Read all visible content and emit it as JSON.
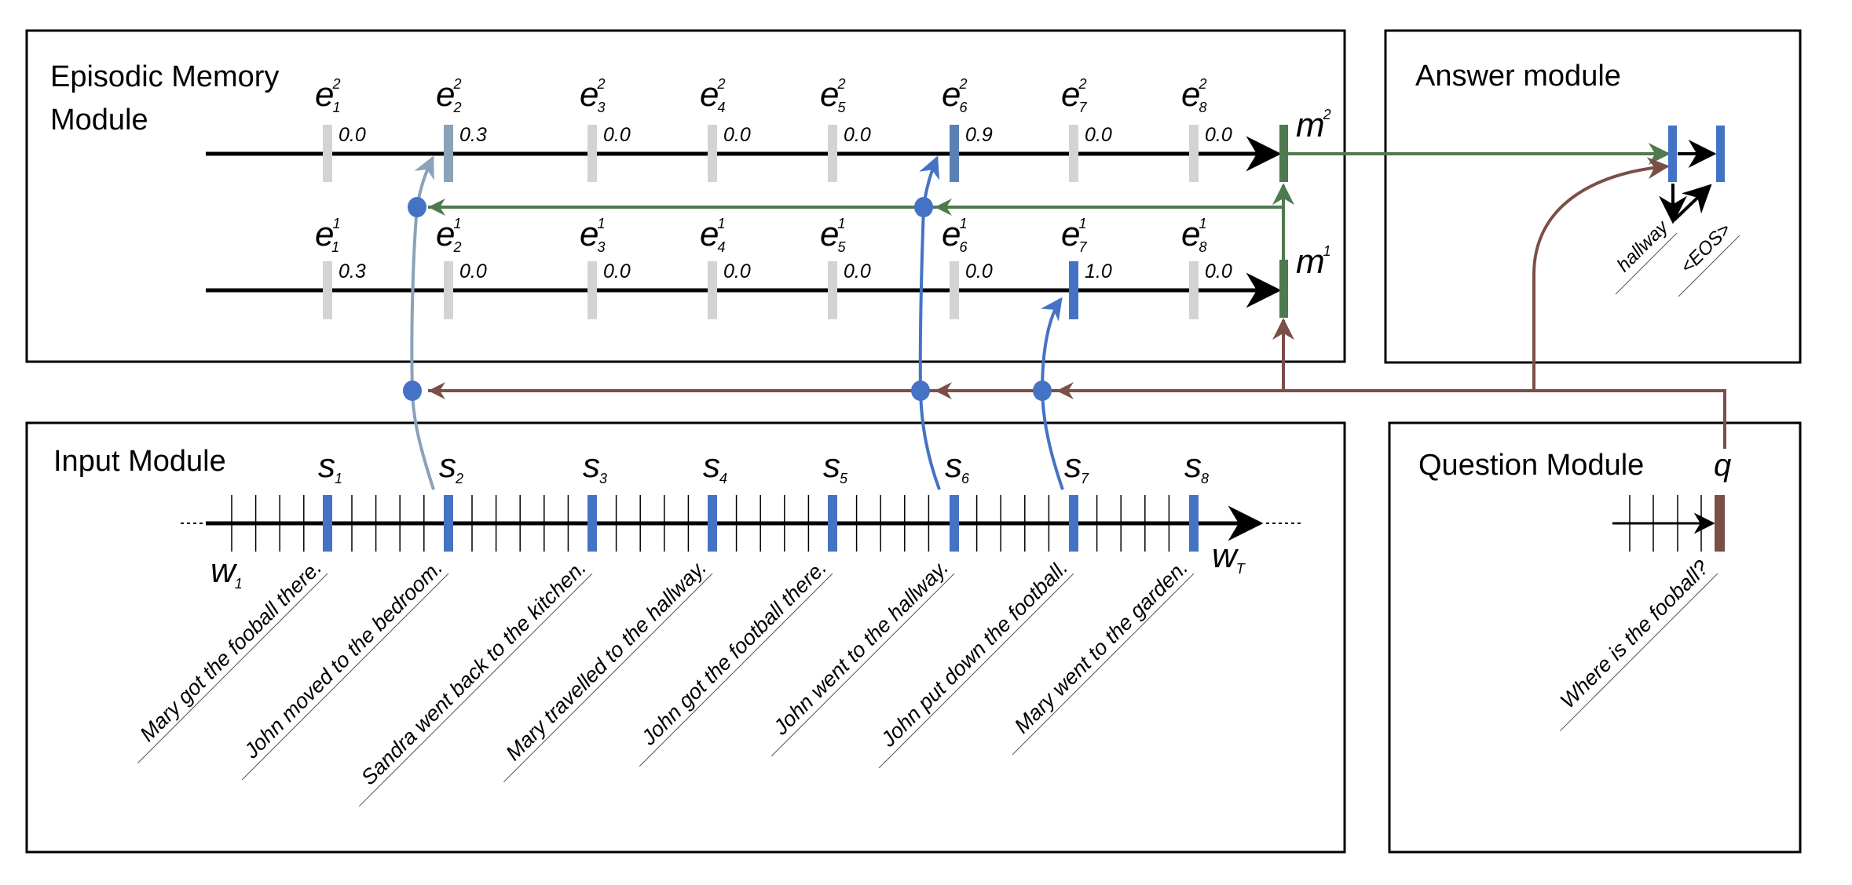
{
  "colors": {
    "blue": "#4472c4",
    "steel": "#8aa2ba",
    "mid_blue": "#5a80b6",
    "green": "#4f7a4f",
    "brown": "#7b4f47",
    "gray": "#d3d3d3",
    "black": "#000000"
  },
  "episodic_memory": {
    "title_line1": "Episodic Memory",
    "title_line2": "Module",
    "episode_base": "e",
    "indices": [
      "1",
      "2",
      "3",
      "4",
      "5",
      "6",
      "7",
      "8"
    ],
    "passes": [
      {
        "sup": "2",
        "gates": [
          "0.0",
          "0.3",
          "0.0",
          "0.0",
          "0.0",
          "0.9",
          "0.0",
          "0.0"
        ],
        "highlight": [
          null,
          "steel",
          null,
          null,
          null,
          "mid_blue",
          null,
          null
        ],
        "memory_label": "m",
        "memory_sup": "2"
      },
      {
        "sup": "1",
        "gates": [
          "0.3",
          "0.0",
          "0.0",
          "0.0",
          "0.0",
          "0.0",
          "1.0",
          "0.0"
        ],
        "highlight": [
          null,
          null,
          null,
          null,
          null,
          null,
          "blue",
          null
        ],
        "memory_label": "m",
        "memory_sup": "1"
      }
    ]
  },
  "answer_module": {
    "title": "Answer module",
    "outputs": [
      "hallway",
      "<EOS>"
    ]
  },
  "input_module": {
    "title": "Input Module",
    "sentence_base": "s",
    "indices": [
      "1",
      "2",
      "3",
      "4",
      "5",
      "6",
      "7",
      "8"
    ],
    "word_first": {
      "base": "w",
      "sub": "1"
    },
    "word_last": {
      "base": "w",
      "sub": "T"
    },
    "sentences": [
      "Mary got the fooball there.",
      "John moved to the bedroom.",
      "Sandra went back to the kitchen.",
      "Mary travelled to the hallway.",
      "John got the football there.",
      "John went to the hallway.",
      "John put down the football.",
      "Mary went to the garden."
    ]
  },
  "question_module": {
    "title": "Question Module",
    "question_label": "q",
    "question": "Where is the fooball?"
  }
}
